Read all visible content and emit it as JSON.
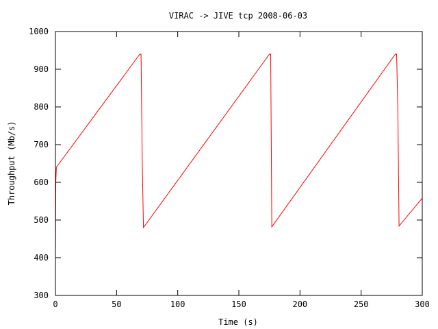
{
  "chart_data": {
    "type": "line",
    "title": "VIRAC -> JIVE tcp 2008-06-03",
    "xlabel": "Time (s)",
    "ylabel": "Throughput (Mb/s)",
    "xlim": [
      0,
      300
    ],
    "ylim": [
      300,
      1000
    ],
    "x_ticks": [
      0,
      50,
      100,
      150,
      200,
      250,
      300
    ],
    "y_ticks": [
      300,
      400,
      500,
      600,
      700,
      800,
      900,
      1000
    ],
    "x_tick_labels": [
      "0",
      "50",
      "100",
      "150",
      "200",
      "250",
      "300"
    ],
    "y_tick_labels": [
      "300",
      "400",
      "500",
      "600",
      "700",
      "800",
      "900",
      "1000"
    ],
    "grid": false,
    "legend": "none",
    "series": [
      {
        "color": "#ff0000",
        "x": [
          0,
          0.3,
          0.8,
          69,
          70,
          71,
          72,
          175,
          176,
          177,
          278,
          279,
          280,
          281,
          300
        ],
        "y": [
          410,
          600,
          640,
          940,
          940,
          650,
          480,
          940,
          940,
          482,
          940,
          940,
          800,
          484,
          558
        ]
      }
    ]
  }
}
